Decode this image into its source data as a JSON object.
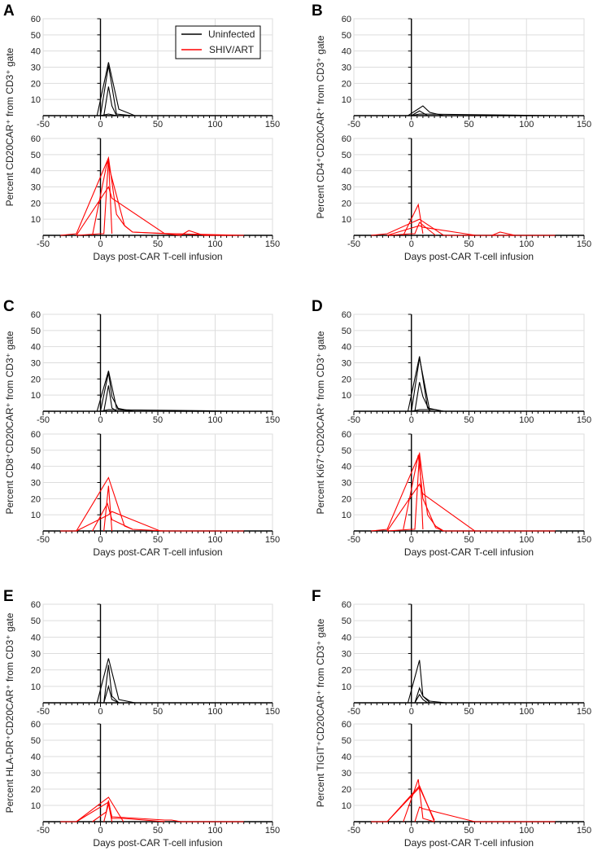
{
  "colors": {
    "uninfected": "#000000",
    "shiv_art": "#ff0000",
    "grid": "#dddddd"
  },
  "legend": {
    "uninfected": "Uninfected",
    "shiv_art": "SHIV/ART"
  },
  "chart_data": [
    {
      "panel": "A",
      "type": "line",
      "ylabel": "Percent CD20CAR⁺ from CD3⁺ gate",
      "xlabel": "Days post-CAR T-cell infusion",
      "xlim": [
        -50,
        150
      ],
      "ylim": [
        0,
        60
      ],
      "xticks": [
        "-50",
        "0",
        "50",
        "100",
        "150"
      ],
      "yticks": [
        "10",
        "20",
        "30",
        "40",
        "50",
        "60"
      ],
      "grid": true,
      "legend": "top-right",
      "uninfected": [
        [
          [
            -3,
            0
          ],
          [
            7,
            33
          ],
          [
            16,
            4
          ],
          [
            30,
            0
          ],
          [
            60,
            0
          ]
        ],
        [
          [
            0,
            0
          ],
          [
            7,
            31
          ],
          [
            14,
            1
          ],
          [
            28,
            0
          ]
        ],
        [
          [
            3,
            0
          ],
          [
            7,
            18
          ],
          [
            10,
            6
          ],
          [
            14,
            0
          ],
          [
            25,
            0
          ]
        ],
        [
          [
            0,
            0
          ],
          [
            7,
            1
          ],
          [
            14,
            0
          ],
          [
            125,
            0
          ]
        ]
      ],
      "shiv_art": [
        [
          [
            -35,
            0
          ],
          [
            -21,
            1
          ],
          [
            7,
            48
          ],
          [
            14,
            13
          ],
          [
            21,
            6
          ],
          [
            28,
            2
          ],
          [
            56,
            1
          ],
          [
            70,
            0
          ],
          [
            77,
            3
          ],
          [
            90,
            0
          ],
          [
            125,
            0
          ]
        ],
        [
          [
            -21,
            0
          ],
          [
            7,
            30
          ],
          [
            10,
            23
          ],
          [
            56,
            1
          ],
          [
            63,
            1
          ],
          [
            105,
            0
          ]
        ],
        [
          [
            -7,
            0
          ],
          [
            6,
            46
          ],
          [
            21,
            6
          ],
          [
            28,
            2
          ],
          [
            63,
            1
          ],
          [
            125,
            0
          ]
        ],
        [
          [
            -21,
            0
          ],
          [
            0,
            1
          ],
          [
            3,
            1
          ],
          [
            7,
            48
          ],
          [
            10,
            1
          ]
        ]
      ]
    },
    {
      "panel": "B",
      "type": "line",
      "ylabel": "Percent CD4⁺CD20CAR⁺ from CD3⁺ gate",
      "xlabel": "Days post-CAR T-cell infusion",
      "xlim": [
        -50,
        150
      ],
      "ylim": [
        0,
        60
      ],
      "xticks": [
        "-50",
        "0",
        "50",
        "100",
        "150"
      ],
      "yticks": [
        "10",
        "20",
        "30",
        "40",
        "50",
        "60"
      ],
      "grid": true,
      "uninfected": [
        [
          [
            -3,
            0
          ],
          [
            10,
            6
          ],
          [
            16,
            2
          ],
          [
            28,
            0
          ]
        ],
        [
          [
            0,
            0
          ],
          [
            7,
            3
          ],
          [
            14,
            0
          ],
          [
            25,
            0
          ]
        ],
        [
          [
            0,
            0
          ],
          [
            7,
            1
          ],
          [
            125,
            0
          ]
        ]
      ],
      "shiv_art": [
        [
          [
            -35,
            0
          ],
          [
            -21,
            1
          ],
          [
            7,
            10
          ],
          [
            28,
            0
          ],
          [
            70,
            0
          ],
          [
            77,
            2
          ],
          [
            90,
            0
          ],
          [
            125,
            0
          ]
        ],
        [
          [
            -21,
            0
          ],
          [
            7,
            6
          ],
          [
            10,
            5
          ],
          [
            56,
            0
          ],
          [
            105,
            0
          ]
        ],
        [
          [
            -7,
            0
          ],
          [
            6,
            19
          ],
          [
            10,
            1
          ]
        ],
        [
          [
            -21,
            0
          ],
          [
            0,
            1
          ],
          [
            3,
            1
          ],
          [
            7,
            8
          ],
          [
            21,
            0
          ]
        ]
      ]
    },
    {
      "panel": "C",
      "type": "line",
      "ylabel": "Percent CD8⁺CD20CAR⁺ from CD3⁺ gate",
      "xlabel": "Days post-CAR T-cell infusion",
      "xlim": [
        -50,
        150
      ],
      "ylim": [
        0,
        60
      ],
      "xticks": [
        "-50",
        "0",
        "50",
        "100",
        "150"
      ],
      "yticks": [
        "10",
        "20",
        "30",
        "40",
        "50",
        "60"
      ],
      "grid": true,
      "uninfected": [
        [
          [
            -3,
            0
          ],
          [
            7,
            25
          ],
          [
            14,
            2
          ],
          [
            28,
            0
          ]
        ],
        [
          [
            0,
            0
          ],
          [
            7,
            24
          ],
          [
            10,
            9
          ],
          [
            16,
            1
          ],
          [
            30,
            0
          ]
        ],
        [
          [
            3,
            0
          ],
          [
            7,
            16
          ],
          [
            10,
            2
          ],
          [
            14,
            0
          ]
        ],
        [
          [
            0,
            0
          ],
          [
            7,
            1
          ],
          [
            125,
            0
          ]
        ]
      ],
      "shiv_art": [
        [
          [
            -35,
            0
          ],
          [
            -21,
            0
          ],
          [
            7,
            33
          ],
          [
            21,
            3
          ],
          [
            28,
            1
          ],
          [
            56,
            0
          ],
          [
            105,
            0
          ]
        ],
        [
          [
            -21,
            0
          ],
          [
            7,
            10
          ],
          [
            10,
            12
          ],
          [
            52,
            0
          ],
          [
            125,
            0
          ]
        ],
        [
          [
            -7,
            0
          ],
          [
            6,
            17
          ],
          [
            10,
            7
          ],
          [
            28,
            1
          ]
        ],
        [
          [
            3,
            0
          ],
          [
            7,
            28
          ],
          [
            10,
            0
          ]
        ]
      ]
    },
    {
      "panel": "D",
      "type": "line",
      "ylabel": "Percent Ki67⁺CD20CAR⁺ from CD3⁺ gate",
      "xlabel": "Days post-CAR T-cell infusion",
      "xlim": [
        -50,
        150
      ],
      "ylim": [
        0,
        60
      ],
      "xticks": [
        "-50",
        "0",
        "50",
        "100",
        "150"
      ],
      "yticks": [
        "10",
        "20",
        "30",
        "40",
        "50",
        "60"
      ],
      "grid": true,
      "uninfected": [
        [
          [
            -3,
            0
          ],
          [
            7,
            34
          ],
          [
            14,
            2
          ],
          [
            28,
            0
          ]
        ],
        [
          [
            0,
            0
          ],
          [
            7,
            33
          ],
          [
            16,
            0
          ]
        ],
        [
          [
            3,
            0
          ],
          [
            7,
            18
          ],
          [
            10,
            9
          ],
          [
            16,
            0
          ]
        ],
        [
          [
            0,
            0
          ],
          [
            7,
            1
          ],
          [
            20,
            1
          ],
          [
            28,
            0
          ]
        ]
      ],
      "shiv_art": [
        [
          [
            -35,
            0
          ],
          [
            -21,
            1
          ],
          [
            7,
            48
          ],
          [
            14,
            10
          ],
          [
            21,
            3
          ],
          [
            28,
            0
          ],
          [
            125,
            0
          ]
        ],
        [
          [
            -21,
            0
          ],
          [
            7,
            29
          ],
          [
            10,
            23
          ],
          [
            55,
            0
          ],
          [
            105,
            0
          ]
        ],
        [
          [
            -7,
            1
          ],
          [
            6,
            47
          ],
          [
            10,
            20
          ],
          [
            21,
            2
          ],
          [
            28,
            0
          ]
        ],
        [
          [
            -21,
            0
          ],
          [
            0,
            1
          ],
          [
            3,
            1
          ],
          [
            7,
            48
          ],
          [
            10,
            1
          ]
        ]
      ]
    },
    {
      "panel": "E",
      "type": "line",
      "ylabel": "Percent HLA-DR⁺CD20CAR⁺ from CD3⁺ gate",
      "xlabel": "Days post-CAR T-cell infusion",
      "xlim": [
        -50,
        150
      ],
      "ylim": [
        0,
        60
      ],
      "xticks": [
        "-50",
        "0",
        "50",
        "100",
        "150"
      ],
      "yticks": [
        "10",
        "20",
        "30",
        "40",
        "50",
        "60"
      ],
      "grid": true,
      "uninfected": [
        [
          [
            -3,
            0
          ],
          [
            7,
            27
          ],
          [
            16,
            2
          ],
          [
            30,
            0
          ],
          [
            125,
            0
          ]
        ],
        [
          [
            3,
            0
          ],
          [
            7,
            23
          ],
          [
            10,
            4
          ],
          [
            16,
            0
          ]
        ],
        [
          [
            3,
            0
          ],
          [
            7,
            10
          ],
          [
            10,
            2
          ],
          [
            16,
            0
          ]
        ],
        [
          [
            0,
            0
          ],
          [
            7,
            0
          ],
          [
            14,
            0
          ]
        ]
      ],
      "shiv_art": [
        [
          [
            -35,
            0
          ],
          [
            -21,
            0
          ],
          [
            7,
            15
          ],
          [
            20,
            0
          ]
        ],
        [
          [
            -21,
            0
          ],
          [
            7,
            12
          ],
          [
            10,
            3
          ],
          [
            56,
            1
          ],
          [
            62,
            1
          ],
          [
            70,
            0
          ],
          [
            125,
            0
          ]
        ],
        [
          [
            -7,
            0
          ],
          [
            5,
            6
          ],
          [
            7,
            13
          ],
          [
            10,
            2
          ],
          [
            20,
            2
          ],
          [
            56,
            0
          ]
        ],
        [
          [
            3,
            0
          ],
          [
            7,
            11
          ],
          [
            10,
            0
          ]
        ]
      ]
    },
    {
      "panel": "F",
      "type": "line",
      "ylabel": "Percent TIGIT⁺CD20CAR⁺ from CD3⁺ gate",
      "xlabel": "Days post-CAR T-cell infusion",
      "xlim": [
        -50,
        150
      ],
      "ylim": [
        0,
        60
      ],
      "xticks": [
        "-50",
        "0",
        "50",
        "100",
        "150"
      ],
      "yticks": [
        "10",
        "20",
        "30",
        "40",
        "50",
        "60"
      ],
      "grid": true,
      "uninfected": [
        [
          [
            -3,
            0
          ],
          [
            7,
            26
          ],
          [
            10,
            4
          ],
          [
            16,
            0
          ]
        ],
        [
          [
            3,
            0
          ],
          [
            7,
            9
          ],
          [
            10,
            4
          ],
          [
            16,
            1
          ],
          [
            30,
            0
          ]
        ],
        [
          [
            3,
            0
          ],
          [
            7,
            5
          ],
          [
            10,
            2
          ],
          [
            14,
            0
          ]
        ],
        [
          [
            0,
            0
          ],
          [
            7,
            0
          ],
          [
            125,
            0
          ]
        ]
      ],
      "shiv_art": [
        [
          [
            -35,
            0
          ],
          [
            -21,
            0
          ],
          [
            7,
            22
          ],
          [
            20,
            0
          ]
        ],
        [
          [
            -7,
            0
          ],
          [
            6,
            26
          ],
          [
            10,
            2
          ],
          [
            20,
            0
          ]
        ],
        [
          [
            -21,
            0
          ],
          [
            7,
            21
          ],
          [
            20,
            1
          ]
        ],
        [
          [
            3,
            0
          ],
          [
            7,
            9
          ],
          [
            10,
            8
          ],
          [
            55,
            0
          ],
          [
            125,
            0
          ]
        ]
      ]
    }
  ]
}
